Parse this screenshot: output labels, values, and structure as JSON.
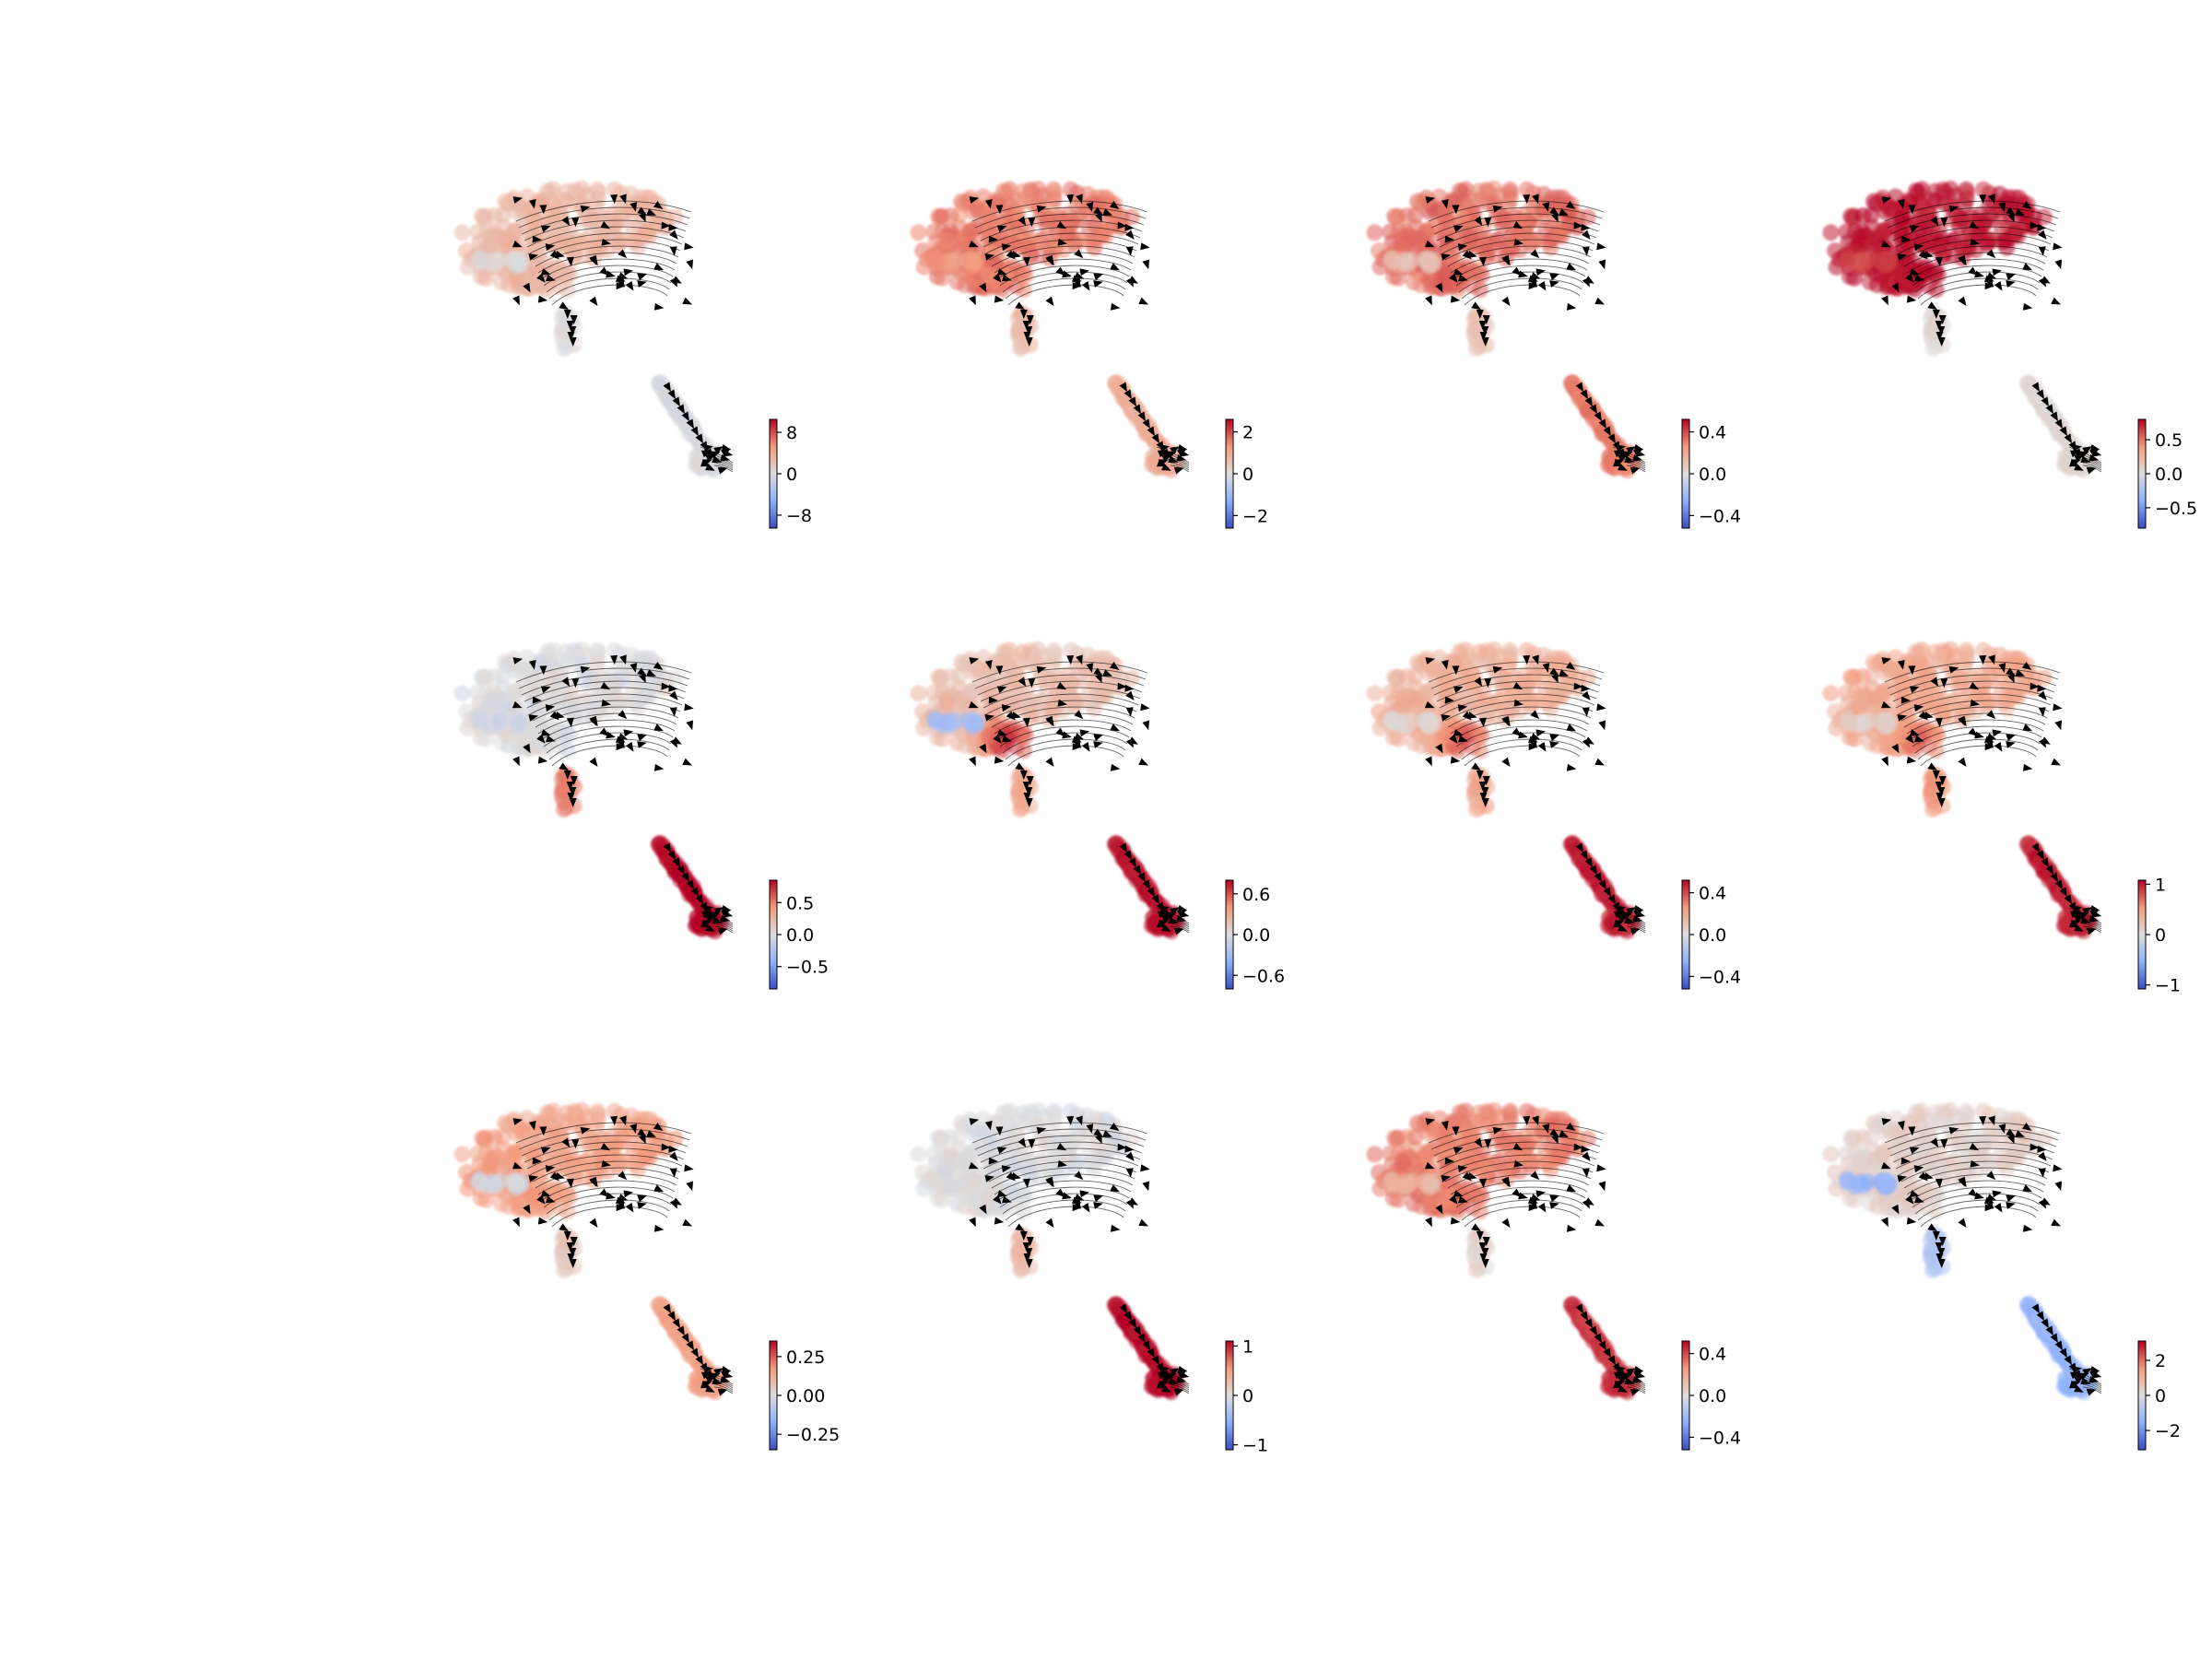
{
  "figure": {
    "layout": "3 rows x 4 columns of velocity stream plots on embedding, each with a coolwarm colorbar",
    "colormap": "coolwarm",
    "colors": {
      "low": "#3b4cc0",
      "mid": "#dddddd",
      "high": "#b40426",
      "arrow": "#000000"
    }
  },
  "chart_data": [
    {
      "type": "scatter",
      "row": 1,
      "col": 1,
      "colorbar": {
        "ticks": [
          {
            "v": 8,
            "label": "8"
          },
          {
            "v": 0,
            "label": "0"
          },
          {
            "v": -8,
            "label": "−8"
          }
        ],
        "range": [
          -10.5,
          10.5
        ]
      },
      "pattern": {
        "upper": 0.3,
        "left": 0.05,
        "neck": 0.0,
        "tail": 0.0,
        "hotspot": 0.0
      }
    },
    {
      "type": "scatter",
      "row": 1,
      "col": 2,
      "colorbar": {
        "ticks": [
          {
            "v": 2,
            "label": "2"
          },
          {
            "v": 0,
            "label": "0"
          },
          {
            "v": -2,
            "label": "−2"
          }
        ],
        "range": [
          -2.6,
          2.6
        ]
      },
      "pattern": {
        "upper": 0.6,
        "left": 0.5,
        "neck": 0.3,
        "tail": 0.35,
        "hotspot": 0.0
      }
    },
    {
      "type": "scatter",
      "row": 1,
      "col": 3,
      "colorbar": {
        "ticks": [
          {
            "v": 0.4,
            "label": "0.4"
          },
          {
            "v": 0.0,
            "label": "0.0"
          },
          {
            "v": -0.4,
            "label": "−0.4"
          }
        ],
        "range": [
          -0.52,
          0.52
        ]
      },
      "pattern": {
        "upper": 0.65,
        "left": 0.2,
        "neck": 0.2,
        "tail": 0.6,
        "hotspot": 0.0
      }
    },
    {
      "type": "scatter",
      "row": 1,
      "col": 4,
      "colorbar": {
        "ticks": [
          {
            "v": 0.5,
            "label": "0.5"
          },
          {
            "v": 0.0,
            "label": "0.0"
          },
          {
            "v": -0.5,
            "label": "−0.5"
          }
        ],
        "range": [
          -0.8,
          0.8
        ]
      },
      "pattern": {
        "upper": 0.95,
        "left": 0.8,
        "neck": 0.05,
        "tail": 0.05,
        "hotspot": 0.0
      }
    },
    {
      "type": "scatter",
      "row": 2,
      "col": 1,
      "colorbar": {
        "ticks": [
          {
            "v": 0.5,
            "label": "0.5"
          },
          {
            "v": 0.0,
            "label": "0.0"
          },
          {
            "v": -0.5,
            "label": "−0.5"
          }
        ],
        "range": [
          -0.85,
          0.85
        ]
      },
      "pattern": {
        "upper": 0.0,
        "left": -0.05,
        "neck": 0.6,
        "tail": 1.0,
        "hotspot": 0.0
      }
    },
    {
      "type": "scatter",
      "row": 2,
      "col": 2,
      "colorbar": {
        "ticks": [
          {
            "v": 0.6,
            "label": "0.6"
          },
          {
            "v": 0.0,
            "label": "0.0"
          },
          {
            "v": -0.6,
            "label": "−0.6"
          }
        ],
        "range": [
          -0.8,
          0.8
        ]
      },
      "pattern": {
        "upper": 0.25,
        "left": -0.35,
        "neck": 0.4,
        "tail": 0.95,
        "hotspot": 1.0
      }
    },
    {
      "type": "scatter",
      "row": 2,
      "col": 3,
      "colorbar": {
        "ticks": [
          {
            "v": 0.4,
            "label": "0.4"
          },
          {
            "v": 0.0,
            "label": "0.0"
          },
          {
            "v": -0.4,
            "label": "−0.4"
          }
        ],
        "range": [
          -0.52,
          0.52
        ]
      },
      "pattern": {
        "upper": 0.35,
        "left": 0.05,
        "neck": 0.4,
        "tail": 0.9,
        "hotspot": 0.85
      }
    },
    {
      "type": "scatter",
      "row": 2,
      "col": 4,
      "colorbar": {
        "ticks": [
          {
            "v": 1,
            "label": "1"
          },
          {
            "v": 0,
            "label": "0"
          },
          {
            "v": -1,
            "label": "−1"
          }
        ],
        "range": [
          -1.08,
          1.08
        ]
      },
      "pattern": {
        "upper": 0.4,
        "left": 0.1,
        "neck": 0.5,
        "tail": 0.9,
        "hotspot": 0.8
      }
    },
    {
      "type": "scatter",
      "row": 3,
      "col": 1,
      "colorbar": {
        "ticks": [
          {
            "v": 0.25,
            "label": "0.25"
          },
          {
            "v": 0.0,
            "label": "0.00"
          },
          {
            "v": -0.25,
            "label": "−0.25"
          }
        ],
        "range": [
          -0.35,
          0.35
        ]
      },
      "pattern": {
        "upper": 0.45,
        "left": -0.1,
        "neck": 0.2,
        "tail": 0.45,
        "hotspot": 0.0
      }
    },
    {
      "type": "scatter",
      "row": 3,
      "col": 2,
      "colorbar": {
        "ticks": [
          {
            "v": 1,
            "label": "1"
          },
          {
            "v": 0,
            "label": "0"
          },
          {
            "v": -1,
            "label": "−1"
          }
        ],
        "range": [
          -1.1,
          1.1
        ]
      },
      "pattern": {
        "upper": 0.0,
        "left": 0.0,
        "neck": 0.3,
        "tail": 1.0,
        "hotspot": 0.0
      }
    },
    {
      "type": "scatter",
      "row": 3,
      "col": 3,
      "colorbar": {
        "ticks": [
          {
            "v": 0.4,
            "label": "0.4"
          },
          {
            "v": 0.0,
            "label": "0.0"
          },
          {
            "v": -0.4,
            "label": "−0.4"
          }
        ],
        "range": [
          -0.52,
          0.52
        ]
      },
      "pattern": {
        "upper": 0.6,
        "left": 0.3,
        "neck": 0.1,
        "tail": 0.85,
        "hotspot": 0.0
      }
    },
    {
      "type": "scatter",
      "row": 3,
      "col": 4,
      "colorbar": {
        "ticks": [
          {
            "v": 2,
            "label": "2"
          },
          {
            "v": 0,
            "label": "0"
          },
          {
            "v": -2,
            "label": "−2"
          }
        ],
        "range": [
          -3.1,
          3.1
        ]
      },
      "pattern": {
        "upper": 0.1,
        "left": -0.45,
        "neck": -0.3,
        "tail": -0.45,
        "hotspot": 0.0
      }
    }
  ]
}
